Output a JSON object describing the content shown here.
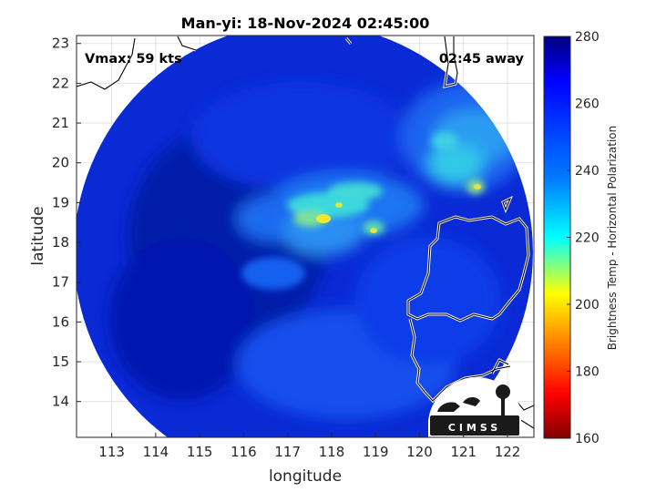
{
  "title": "Man-yi: 18-Nov-2024 02:45:00",
  "annotation_left": "Vmax: 59 kts",
  "annotation_right": "02:45 away",
  "xlabel": "longitude",
  "ylabel": "latitude",
  "colorbar_label": "Brightness Temp - Horizontal Polarization",
  "logo_text": "CIMSS",
  "chart_data": {
    "type": "heatmap",
    "title": "Man-yi: 18-Nov-2024 02:45:00",
    "xlabel": "longitude",
    "ylabel": "latitude",
    "xlim": [
      112.2,
      122.6
    ],
    "ylim": [
      13.1,
      23.2
    ],
    "xticks": [
      "113",
      "114",
      "115",
      "116",
      "117",
      "118",
      "119",
      "120",
      "121",
      "122"
    ],
    "yticks": [
      "14",
      "15",
      "16",
      "17",
      "18",
      "19",
      "20",
      "21",
      "22",
      "23"
    ],
    "colorbar": {
      "label": "Brightness Temp - Horizontal Polarization",
      "range": [
        160,
        280
      ],
      "ticks": [
        "160",
        "180",
        "200",
        "220",
        "240",
        "260",
        "280"
      ],
      "colormap": "jet"
    },
    "storm_center": {
      "lon": 118.0,
      "lat": 18.8
    },
    "swath_center": {
      "lon": 117.3,
      "lat": 18.2
    },
    "cold_cells": [
      {
        "lon": 117.9,
        "lat": 18.6,
        "value": 205
      },
      {
        "lon": 118.2,
        "lat": 18.9,
        "value": 215
      },
      {
        "lon": 119.0,
        "lat": 18.3,
        "value": 222
      },
      {
        "lon": 121.4,
        "lat": 19.4,
        "value": 215
      }
    ],
    "grid": true
  }
}
